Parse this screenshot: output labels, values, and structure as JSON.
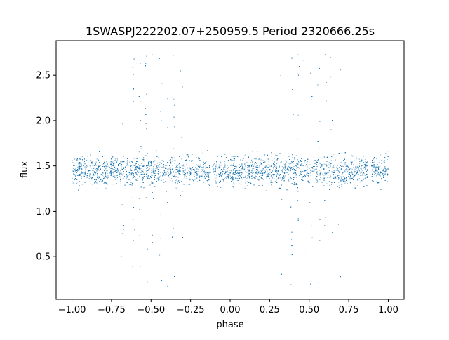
{
  "chart_data": {
    "type": "scatter",
    "title": "1SWASPJ222202.07+250959.5 Period 2320666.25s",
    "xlabel": "phase",
    "ylabel": "flux",
    "xlim": [
      -1.1,
      1.1
    ],
    "ylim": [
      0.03,
      2.88
    ],
    "xticks": [
      -1.0,
      -0.75,
      -0.5,
      -0.25,
      0.0,
      0.25,
      0.5,
      0.75,
      1.0
    ],
    "xtick_labels": [
      "−1.00",
      "−0.75",
      "−0.50",
      "−0.25",
      "0.00",
      "0.25",
      "0.50",
      "0.75",
      "1.00"
    ],
    "yticks": [
      0.5,
      1.0,
      1.5,
      2.0,
      2.5
    ],
    "ytick_labels": [
      "0.5",
      "1.0",
      "1.5",
      "2.0",
      "2.5"
    ],
    "grid": false,
    "legend": "none",
    "marker_color": "#1f77b4",
    "series": [
      {
        "x_range": [
          -1.0,
          1.0
        ],
        "core_flux_range": [
          1.2,
          1.75
        ],
        "median_flux": 1.45,
        "full_flux_range": [
          0.17,
          2.77
        ],
        "gap_phases": [
          -0.12,
          0.88
        ],
        "wide_scatter_phases": [
          -0.68,
          -0.61,
          -0.57,
          -0.53,
          -0.49,
          -0.44,
          -0.4,
          -0.36,
          -0.31,
          0.32,
          0.39,
          0.43,
          0.47,
          0.51,
          0.56,
          0.6,
          0.64,
          0.69
        ]
      }
    ]
  }
}
